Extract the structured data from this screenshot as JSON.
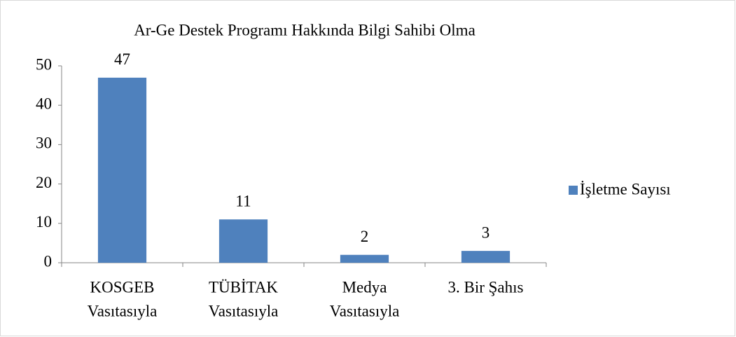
{
  "chart_data": {
    "type": "bar",
    "title": "Ar-Ge Destek Programı Hakkında Bilgi Sahibi Olma",
    "categories": [
      [
        "KOSGEB",
        "Vasıtasıyla"
      ],
      [
        "TÜBİTAK",
        "Vasıtasıyla"
      ],
      [
        "Medya",
        "Vasıtasıyla"
      ],
      [
        "3. Bir Şahıs"
      ]
    ],
    "series": [
      {
        "name": "İşletme Sayısı",
        "color": "#4f81bd",
        "values": [
          47,
          11,
          2,
          3
        ]
      }
    ],
    "ylim": [
      0,
      50
    ],
    "yticks": [
      0,
      10,
      20,
      30,
      40,
      50
    ],
    "grid": false,
    "legend": "right"
  }
}
